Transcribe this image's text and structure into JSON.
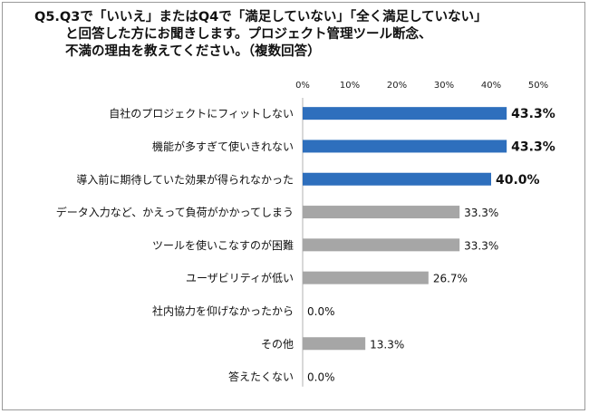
{
  "title_lines": [
    "Q5.Q3で「いいえ」またはQ4で「満足していない」「全く満足していない」",
    "と回答した方にお聞きします。プロジェクト管理ツール断念、",
    "不満の理由を教えてください。（複数回答）"
  ],
  "chart_data": {
    "type": "bar",
    "orientation": "horizontal",
    "categories": [
      "自社のプロジェクトにフィットしない",
      "機能が多すぎて使いきれない",
      "導入前に期待していた効果が得られなかった",
      "データ入力など、かえって負荷がかかってしまう",
      "ツールを使いこなすのが困難",
      "ユーザビリティが低い",
      "社内協力を仰げなかったから",
      "その他",
      "答えたくない"
    ],
    "values": [
      43.3,
      43.3,
      40.0,
      33.3,
      33.3,
      26.7,
      0.0,
      13.3,
      0.0
    ],
    "value_labels": [
      "43.3%",
      "43.3%",
      "40.0%",
      "33.3%",
      "33.3%",
      "26.7%",
      "0.0%",
      "13.3%",
      "0.0%"
    ],
    "highlight": [
      true,
      true,
      true,
      false,
      false,
      false,
      false,
      false,
      false
    ],
    "xlim": [
      0,
      50
    ],
    "xticks": [
      "0%",
      "10%",
      "20%",
      "30%",
      "40%",
      "50%"
    ],
    "colors": {
      "highlight": "#2e6fbd",
      "normal": "#a6a6a6",
      "axis": "#b0b0b0"
    },
    "grid": false
  }
}
